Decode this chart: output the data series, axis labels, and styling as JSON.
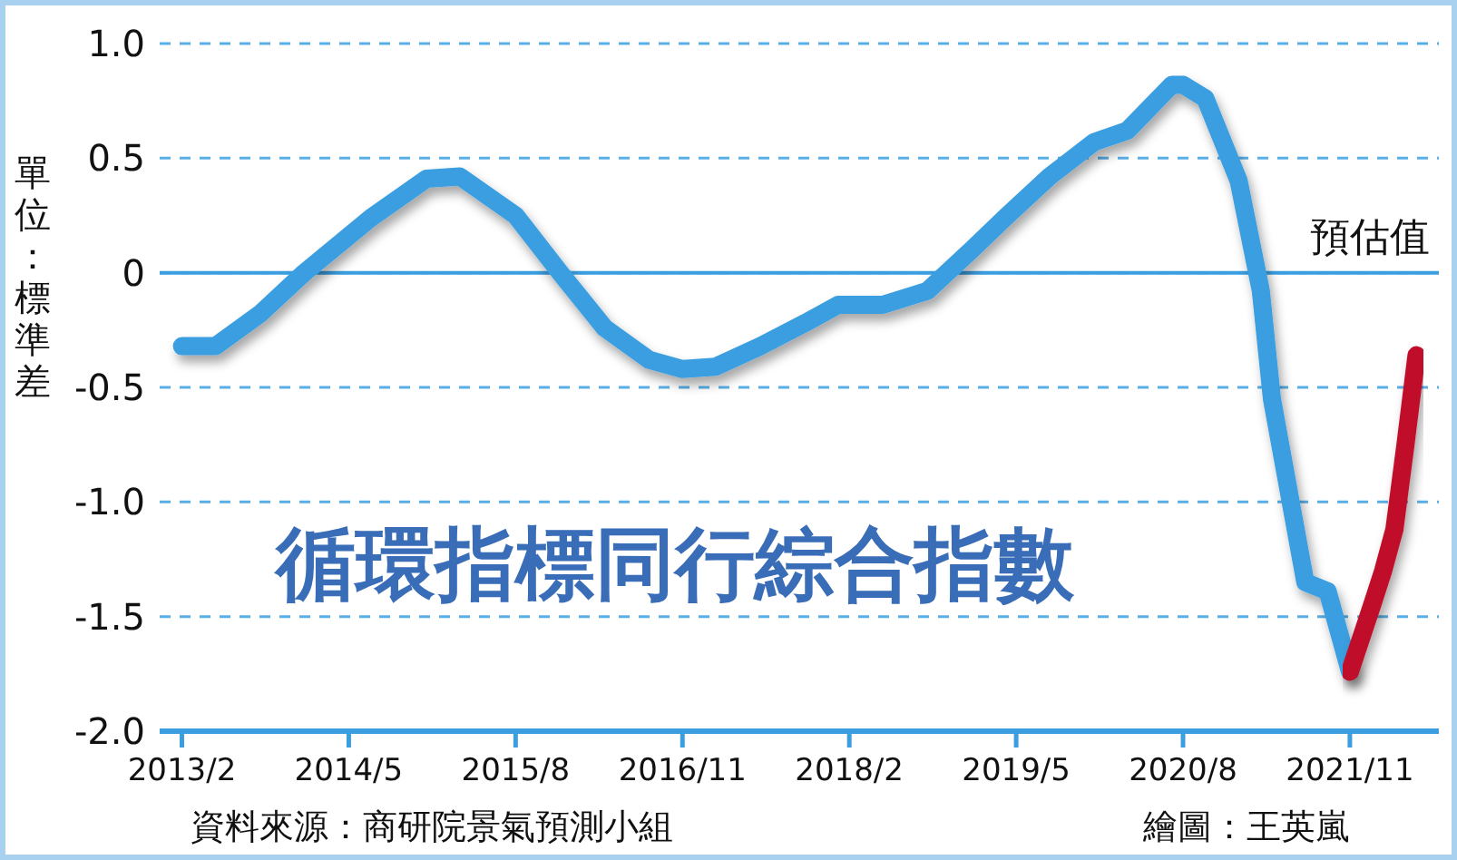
{
  "chart_data": {
    "type": "line",
    "title": "循環指標同行綜合指數",
    "ylabel": "單位：標準差",
    "annotations": [
      "資料來源：商研院景氣預測小組",
      "繪圖：王英嵐"
    ],
    "series": [
      {
        "color": "#3a9ee0",
        "x": [
          "2013-02",
          "2013-05",
          "2013-09",
          "2014-01",
          "2014-07",
          "2014-12",
          "2015-03",
          "2015-08",
          "2015-12",
          "2016-04",
          "2016-08",
          "2016-11",
          "2017-02",
          "2017-06",
          "2017-10",
          "2018-01",
          "2018-05",
          "2018-09",
          "2019-01",
          "2019-04",
          "2019-08",
          "2019-12",
          "2020-03",
          "2020-07",
          "2020-08",
          "2020-10",
          "2021-01",
          "2021-03",
          "2021-04",
          "2021-07",
          "2021-09",
          "2021-11"
        ],
        "values": [
          -0.32,
          -0.32,
          -0.18,
          0.0,
          0.24,
          0.41,
          0.42,
          0.25,
          0.0,
          -0.24,
          -0.38,
          -0.42,
          -0.41,
          -0.32,
          -0.22,
          -0.14,
          -0.14,
          -0.08,
          0.1,
          0.24,
          0.42,
          0.57,
          0.62,
          0.82,
          0.82,
          0.76,
          0.4,
          -0.08,
          -0.55,
          -1.35,
          -1.39,
          -1.74
        ]
      },
      {
        "name": "預估值",
        "color": "#c0102a",
        "x": [
          "2021-11",
          "2022-01",
          "2022-02",
          "2022-03",
          "2022-04",
          "2022-05"
        ],
        "values": [
          -1.74,
          -1.45,
          -1.3,
          -1.12,
          -0.75,
          -0.36
        ]
      }
    ],
    "xlim": [
      "2012-12",
      "2022-07"
    ],
    "xticks": [
      {
        "value": "2013-02",
        "label": "2013/2"
      },
      {
        "value": "2014-05",
        "label": "2014/5"
      },
      {
        "value": "2015-08",
        "label": "2015/8"
      },
      {
        "value": "2016-11",
        "label": "2016/11"
      },
      {
        "value": "2018-02",
        "label": "2018/2"
      },
      {
        "value": "2019-05",
        "label": "2019/5"
      },
      {
        "value": "2020-08",
        "label": "2020/8"
      },
      {
        "value": "2021-11",
        "label": "2021/11"
      }
    ],
    "ylim": [
      -2.0,
      1.0
    ],
    "yticks": [
      {
        "value": 1.0,
        "label": "1.0"
      },
      {
        "value": 0.5,
        "label": "0.5"
      },
      0,
      {
        "value": -0.5,
        "label": "-0.5"
      },
      {
        "value": -1.0,
        "label": "-1.0"
      },
      {
        "value": -1.5,
        "label": "-1.5"
      },
      {
        "value": -2.0,
        "label": "-2.0"
      }
    ],
    "grid": "y",
    "ref_lines": [
      {
        "axis": "y",
        "value": 0,
        "color": "#3a9ee0",
        "line_style": "solid"
      }
    ],
    "legend": false,
    "marker": "none",
    "line_style": "solid"
  }
}
